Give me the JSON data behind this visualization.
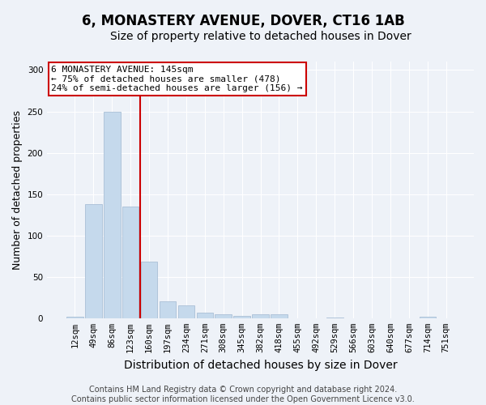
{
  "title": "6, MONASTERY AVENUE, DOVER, CT16 1AB",
  "subtitle": "Size of property relative to detached houses in Dover",
  "xlabel": "Distribution of detached houses by size in Dover",
  "ylabel": "Number of detached properties",
  "categories": [
    "12sqm",
    "49sqm",
    "86sqm",
    "123sqm",
    "160sqm",
    "197sqm",
    "234sqm",
    "271sqm",
    "308sqm",
    "345sqm",
    "382sqm",
    "418sqm",
    "455sqm",
    "492sqm",
    "529sqm",
    "566sqm",
    "603sqm",
    "640sqm",
    "677sqm",
    "714sqm",
    "751sqm"
  ],
  "values": [
    2,
    138,
    250,
    135,
    68,
    20,
    15,
    7,
    5,
    3,
    5,
    5,
    0,
    0,
    1,
    0,
    0,
    0,
    0,
    2,
    0
  ],
  "bar_color": "#c5d9ec",
  "bar_edge_color": "#aabfd6",
  "red_line_index": 3.5,
  "red_line_color": "#cc0000",
  "annotation_line1": "6 MONASTERY AVENUE: 145sqm",
  "annotation_line2": "← 75% of detached houses are smaller (478)",
  "annotation_line3": "24% of semi-detached houses are larger (156) →",
  "annotation_box_color": "#ffffff",
  "annotation_box_edge_color": "#cc0000",
  "ylim": [
    0,
    310
  ],
  "yticks": [
    0,
    50,
    100,
    150,
    200,
    250,
    300
  ],
  "background_color": "#eef2f8",
  "grid_color": "#ffffff",
  "title_fontsize": 12,
  "subtitle_fontsize": 10,
  "xlabel_fontsize": 10,
  "ylabel_fontsize": 9,
  "tick_fontsize": 7.5,
  "annotation_fontsize": 8,
  "footer_fontsize": 7,
  "footer_line1": "Contains HM Land Registry data © Crown copyright and database right 2024.",
  "footer_line2": "Contains public sector information licensed under the Open Government Licence v3.0."
}
